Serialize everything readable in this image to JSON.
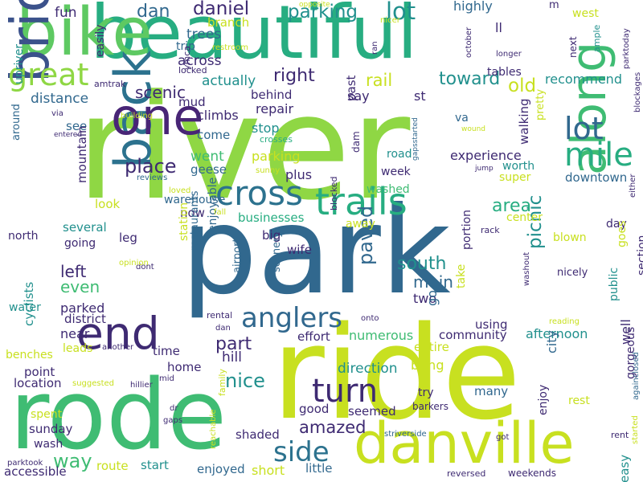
{
  "palette": {
    "dark_purple": "#482576",
    "deep_purple": "#3e2a72",
    "indigo": "#3b528b",
    "blue": "#31688e",
    "steel_blue": "#2c728e",
    "teal": "#21908d",
    "sea_green": "#27ad81",
    "green": "#3fbc73",
    "lime_green": "#5ec962",
    "light_green": "#8fd744",
    "yellow_green": "#c8e020",
    "yellow": "#dde318"
  },
  "words": [
    {
      "text": "river",
      "color": "#8fd744"
    },
    {
      "text": "park",
      "color": "#31688e"
    },
    {
      "text": "ride",
      "color": "#c8e020"
    },
    {
      "text": "beautiful",
      "color": "#27ad81"
    },
    {
      "text": "rode",
      "color": "#3fbc73"
    },
    {
      "text": "bike",
      "color": "#5ec962"
    },
    {
      "text": "bridge",
      "color": "#3b528b"
    },
    {
      "text": "back",
      "color": "#2c728e"
    },
    {
      "text": "one",
      "color": "#482576"
    },
    {
      "text": "danville",
      "color": "#c8e020"
    },
    {
      "text": "along",
      "color": "#3fbc73"
    },
    {
      "text": "end",
      "color": "#3e2a72"
    },
    {
      "text": "trails",
      "color": "#27ad81"
    },
    {
      "text": "cross",
      "color": "#2c728e"
    },
    {
      "text": "mile",
      "color": "#27ad81"
    },
    {
      "text": "lot",
      "color": "#31688e"
    },
    {
      "text": "great",
      "color": "#8fd744"
    },
    {
      "text": "turn",
      "color": "#3e2a72"
    },
    {
      "text": "anglers",
      "color": "#31688e"
    },
    {
      "text": "side",
      "color": "#2c728e"
    },
    {
      "text": "dan",
      "color": "#31688e"
    },
    {
      "text": "daniel",
      "color": "#3e2a72"
    },
    {
      "text": "parking",
      "color": "#21908d"
    },
    {
      "text": "lot",
      "color": "#21908d"
    },
    {
      "text": "scenic",
      "color": "#3e2a72"
    },
    {
      "text": "right",
      "color": "#3e2a72"
    },
    {
      "text": "rail",
      "color": "#c8e020"
    },
    {
      "text": "toward",
      "color": "#21908d"
    },
    {
      "text": "old",
      "color": "#c8e020"
    },
    {
      "text": "place",
      "color": "#3e2a72"
    },
    {
      "text": "way",
      "color": "#3fbc73"
    },
    {
      "text": "nice",
      "color": "#21908d"
    },
    {
      "text": "part",
      "color": "#3e2a72"
    },
    {
      "text": "paved",
      "color": "#31688e"
    },
    {
      "text": "south",
      "color": "#21908d"
    },
    {
      "text": "picnic",
      "color": "#21908d"
    },
    {
      "text": "area",
      "color": "#27ad81"
    },
    {
      "text": "amazed",
      "color": "#3e2a72"
    },
    {
      "text": "even",
      "color": "#3fbc73"
    },
    {
      "text": "left",
      "color": "#3e2a72"
    },
    {
      "text": "main",
      "color": "#31688e"
    },
    {
      "text": "fun",
      "color": "#3e2a72"
    },
    {
      "text": "trees",
      "color": "#31688e"
    },
    {
      "text": "across",
      "color": "#3e2a72"
    },
    {
      "text": "trip",
      "color": "#31688e"
    },
    {
      "text": "branch",
      "color": "#c8e020"
    },
    {
      "text": "actually",
      "color": "#21908d"
    },
    {
      "text": "distance",
      "color": "#31688e"
    },
    {
      "text": "behind",
      "color": "#3e2a72"
    },
    {
      "text": "repair",
      "color": "#3e2a72"
    },
    {
      "text": "stop",
      "color": "#21908d"
    },
    {
      "text": "crosses",
      "color": "#27ad81"
    },
    {
      "text": "parking",
      "color": "#c8e020"
    },
    {
      "text": "plus",
      "color": "#3e2a72"
    },
    {
      "text": "climbs",
      "color": "#3e2a72"
    },
    {
      "text": "come",
      "color": "#31688e"
    },
    {
      "text": "went",
      "color": "#3fbc73"
    },
    {
      "text": "geese",
      "color": "#31688e"
    },
    {
      "text": "mud",
      "color": "#3e2a72"
    },
    {
      "text": "see",
      "color": "#31688e"
    },
    {
      "text": "highly",
      "color": "#31688e"
    },
    {
      "text": "ll",
      "color": "#3e2a72"
    },
    {
      "text": "m",
      "color": "#3e2a72"
    },
    {
      "text": "west",
      "color": "#c8e020"
    },
    {
      "text": "tables",
      "color": "#3e2a72"
    },
    {
      "text": "recommend",
      "color": "#21908d"
    },
    {
      "text": "say",
      "color": "#3e2a72"
    },
    {
      "text": "st",
      "color": "#3e2a72"
    },
    {
      "text": "va",
      "color": "#31688e"
    },
    {
      "text": "walking",
      "color": "#3e2a72"
    },
    {
      "text": "pretty",
      "color": "#c8e020"
    },
    {
      "text": "experience",
      "color": "#3e2a72"
    },
    {
      "text": "worth",
      "color": "#21908d"
    },
    {
      "text": "downtown",
      "color": "#31688e"
    },
    {
      "text": "week",
      "color": "#3e2a72"
    },
    {
      "text": "washed",
      "color": "#3fbc73"
    },
    {
      "text": "super",
      "color": "#c8e020"
    },
    {
      "text": "road",
      "color": "#21908d"
    },
    {
      "text": "center",
      "color": "#c8e020"
    },
    {
      "text": "day",
      "color": "#3e2a72"
    },
    {
      "text": "blown",
      "color": "#c8e020"
    },
    {
      "text": "portion",
      "color": "#3e2a72"
    },
    {
      "text": "away",
      "color": "#c8e020"
    },
    {
      "text": "goes",
      "color": "#c8e020"
    },
    {
      "text": "section",
      "color": "#3e2a72"
    },
    {
      "text": "public",
      "color": "#21908d"
    },
    {
      "text": "nicely",
      "color": "#3e2a72"
    },
    {
      "text": "look",
      "color": "#c8e020"
    },
    {
      "text": "warehouse",
      "color": "#31688e"
    },
    {
      "text": "now",
      "color": "#3e2a72"
    },
    {
      "text": "businesses",
      "color": "#27ad81"
    },
    {
      "text": "enjoyable",
      "color": "#31688e"
    },
    {
      "text": "several",
      "color": "#21908d"
    },
    {
      "text": "mountain",
      "color": "#3e2a72"
    },
    {
      "text": "going",
      "color": "#3e2a72"
    },
    {
      "text": "north",
      "color": "#3e2a72"
    },
    {
      "text": "leg",
      "color": "#3e2a72"
    },
    {
      "text": "station",
      "color": "#c8e020"
    },
    {
      "text": "restaurants",
      "color": "#31688e"
    },
    {
      "text": "airport",
      "color": "#31688e"
    },
    {
      "text": "scenery",
      "color": "#31688e"
    },
    {
      "text": "big",
      "color": "#3e2a72"
    },
    {
      "text": "wife",
      "color": "#3e2a72"
    },
    {
      "text": "two",
      "color": "#3e2a72"
    },
    {
      "text": "go",
      "color": "#31688e"
    },
    {
      "text": "take",
      "color": "#c8e020"
    },
    {
      "text": "using",
      "color": "#3e2a72"
    },
    {
      "text": "community",
      "color": "#3e2a72"
    },
    {
      "text": "numerous",
      "color": "#3fbc73"
    },
    {
      "text": "effort",
      "color": "#3e2a72"
    },
    {
      "text": "afternoon",
      "color": "#21908d"
    },
    {
      "text": "city",
      "color": "#31688e"
    },
    {
      "text": "entire",
      "color": "#c8e020"
    },
    {
      "text": "bring",
      "color": "#c8e020"
    },
    {
      "text": "direction",
      "color": "#21908d"
    },
    {
      "text": "parked",
      "color": "#3e2a72"
    },
    {
      "text": "near",
      "color": "#3e2a72"
    },
    {
      "text": "district",
      "color": "#3e2a72"
    },
    {
      "text": "leads",
      "color": "#c8e020"
    },
    {
      "text": "time",
      "color": "#3e2a72"
    },
    {
      "text": "home",
      "color": "#3e2a72"
    },
    {
      "text": "hill",
      "color": "#3e2a72"
    },
    {
      "text": "cyclists",
      "color": "#21908d"
    },
    {
      "text": "water",
      "color": "#21908d"
    },
    {
      "text": "benches",
      "color": "#c8e020"
    },
    {
      "text": "point",
      "color": "#3e2a72"
    },
    {
      "text": "location",
      "color": "#3e2a72"
    },
    {
      "text": "spent",
      "color": "#c8e020"
    },
    {
      "text": "sunday",
      "color": "#3e2a72"
    },
    {
      "text": "wash",
      "color": "#3e2a72"
    },
    {
      "text": "accessible",
      "color": "#3e2a72"
    },
    {
      "text": "route",
      "color": "#c8e020"
    },
    {
      "text": "start",
      "color": "#21908d"
    },
    {
      "text": "enjoyed",
      "color": "#31688e"
    },
    {
      "text": "short",
      "color": "#c8e020"
    },
    {
      "text": "little",
      "color": "#31688e"
    },
    {
      "text": "shaded",
      "color": "#3e2a72"
    },
    {
      "text": "good",
      "color": "#3e2a72"
    },
    {
      "text": "seemed",
      "color": "#3e2a72"
    },
    {
      "text": "try",
      "color": "#3e2a72"
    },
    {
      "text": "many",
      "color": "#31688e"
    },
    {
      "text": "rest",
      "color": "#c8e020"
    },
    {
      "text": "enjoy",
      "color": "#3e2a72"
    },
    {
      "text": "gorgeous",
      "color": "#3e2a72"
    },
    {
      "text": "well",
      "color": "#3e2a72"
    },
    {
      "text": "easy",
      "color": "#21908d"
    },
    {
      "text": "easily",
      "color": "#3e2a72"
    },
    {
      "text": "upriver",
      "color": "#21908d"
    },
    {
      "text": "amtrak",
      "color": "#3e2a72"
    },
    {
      "text": "around",
      "color": "#31688e"
    },
    {
      "text": "ymca",
      "color": "#3e2a72"
    },
    {
      "text": "restroom",
      "color": "#c8e020"
    },
    {
      "text": "locked",
      "color": "#3e2a72"
    },
    {
      "text": "building",
      "color": "#c8e020"
    },
    {
      "text": "via",
      "color": "#3e2a72"
    },
    {
      "text": "entered",
      "color": "#3e2a72"
    },
    {
      "text": "reviews",
      "color": "#31688e"
    },
    {
      "text": "loved",
      "color": "#c8e020"
    },
    {
      "text": "dont",
      "color": "#3e2a72"
    },
    {
      "text": "fall",
      "color": "#c8e020"
    },
    {
      "text": "blocked",
      "color": "#3e2a72"
    },
    {
      "text": "opinion",
      "color": "#c8e020"
    },
    {
      "text": "rental",
      "color": "#3e2a72"
    },
    {
      "text": "dan",
      "color": "#3e2a72"
    },
    {
      "text": "onto",
      "color": "#3e2a72"
    },
    {
      "text": "another",
      "color": "#3e2a72"
    },
    {
      "text": "mid",
      "color": "#3e2a72"
    },
    {
      "text": "suggested",
      "color": "#c8e020"
    },
    {
      "text": "hillier",
      "color": "#3e2a72"
    },
    {
      "text": "dr",
      "color": "#3e2a72"
    },
    {
      "text": "gaps",
      "color": "#3e2a72"
    },
    {
      "text": "reachable",
      "color": "#c8e020"
    },
    {
      "text": "family",
      "color": "#c8e020"
    },
    {
      "text": "striverside",
      "color": "#31688e"
    },
    {
      "text": "barkers",
      "color": "#3e2a72"
    },
    {
      "text": "got",
      "color": "#3e2a72"
    },
    {
      "text": "rent",
      "color": "#3e2a72"
    },
    {
      "text": "started",
      "color": "#c8e020"
    },
    {
      "text": "parktook",
      "color": "#3e2a72"
    },
    {
      "text": "reversed",
      "color": "#3e2a72"
    },
    {
      "text": "weekends",
      "color": "#3e2a72"
    },
    {
      "text": "opposite",
      "color": "#c8e020"
    },
    {
      "text": "nicer",
      "color": "#c8e020"
    },
    {
      "text": "ran",
      "color": "#3e2a72"
    },
    {
      "text": "october",
      "color": "#3e2a72"
    },
    {
      "text": "gapsstarted",
      "color": "#31688e"
    },
    {
      "text": "next",
      "color": "#3e2a72"
    },
    {
      "text": "longer",
      "color": "#3e2a72"
    },
    {
      "text": "ample",
      "color": "#21908d"
    },
    {
      "text": "parktoday",
      "color": "#3e2a72"
    },
    {
      "text": "blockages",
      "color": "#3e2a72"
    },
    {
      "text": "either",
      "color": "#3e2a72"
    },
    {
      "text": "jump",
      "color": "#3e2a72"
    },
    {
      "text": "wound",
      "color": "#c8e020"
    },
    {
      "text": "rack",
      "color": "#3e2a72"
    },
    {
      "text": "washout",
      "color": "#3e2a72"
    },
    {
      "text": "reading",
      "color": "#c8e020"
    },
    {
      "text": "againclosed",
      "color": "#31688e"
    },
    {
      "text": "sunny",
      "color": "#c8e020"
    },
    {
      "text": "dam",
      "color": "#3e2a72"
    },
    {
      "text": "past",
      "color": "#3e2a72"
    }
  ]
}
